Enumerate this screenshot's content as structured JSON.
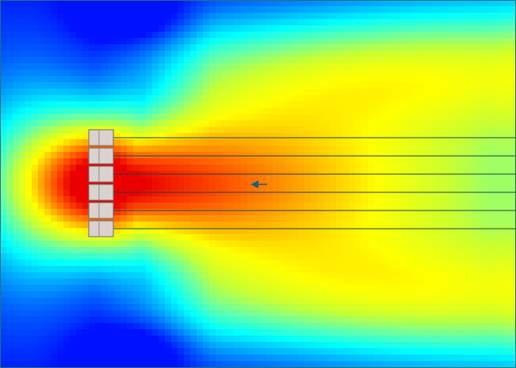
{
  "scene": {
    "view": "heatmap-field-simulation",
    "colormap": [
      "#0011ff",
      "#0066ff",
      "#00ccff",
      "#00ffff",
      "#66ffaa",
      "#ccff33",
      "#ffff00",
      "#ffaa00",
      "#ff5500",
      "#ee0000"
    ],
    "background_color": "#0a37e8",
    "frame_color": "#2a6f6f",
    "line_color": "#1c3f4c",
    "arrow_color": "#1b5f7f",
    "element_fill": "#d9d2cf",
    "element_border": "#6d6868",
    "element_count": 6,
    "arrow": {
      "direction": "left"
    }
  }
}
